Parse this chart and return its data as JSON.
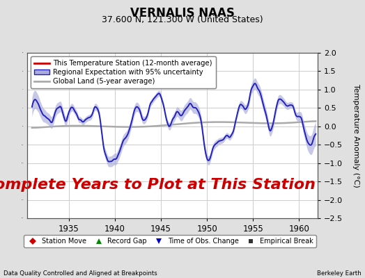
{
  "title": "VERNALIS NAAS",
  "subtitle": "37.600 N, 121.300 W (United States)",
  "ylabel": "Temperature Anomaly (°C)",
  "xlabel_left": "Data Quality Controlled and Aligned at Breakpoints",
  "xlabel_right": "Berkeley Earth",
  "annotation": "No Complete Years to Plot at This Station",
  "legend_entries": [
    {
      "label": "This Temperature Station (12-month average)",
      "color": "#cc0000",
      "lw": 2
    },
    {
      "label": "Regional Expectation with 95% uncertainty",
      "color": "#2222bb",
      "fill_color": "#aaaadd",
      "lw": 1.5
    },
    {
      "label": "Global Land (5-year average)",
      "color": "#aaaaaa",
      "lw": 1.8
    }
  ],
  "marker_legend": [
    {
      "label": "Station Move",
      "marker": "D",
      "color": "#cc0000"
    },
    {
      "label": "Record Gap",
      "marker": "^",
      "color": "#008800"
    },
    {
      "label": "Time of Obs. Change",
      "marker": "v",
      "color": "#0000cc"
    },
    {
      "label": "Empirical Break",
      "marker": "s",
      "color": "#333333"
    }
  ],
  "xmin": 1930.5,
  "xmax": 1962.0,
  "ymin": -2.5,
  "ymax": 2.0,
  "yticks": [
    -2.5,
    -2.0,
    -1.5,
    -1.0,
    -0.5,
    0.0,
    0.5,
    1.0,
    1.5,
    2.0
  ],
  "xticks": [
    1935,
    1940,
    1945,
    1950,
    1955,
    1960
  ],
  "bg_color": "#e0e0e0",
  "plot_bg_color": "#ffffff",
  "grid_color": "#cccccc",
  "title_fontsize": 12,
  "subtitle_fontsize": 9,
  "annotation_fontsize": 16,
  "annotation_color": "#cc0000"
}
